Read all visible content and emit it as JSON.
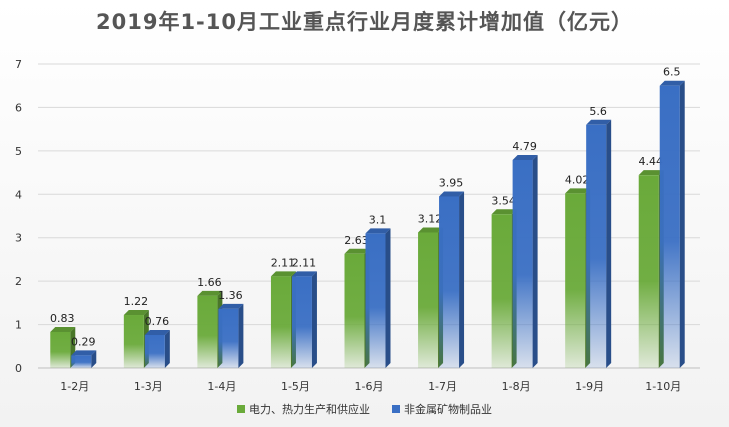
{
  "chart_data": {
    "type": "bar",
    "title": "2019年1-10月工业重点行业月度累计增加值（亿元）",
    "categories": [
      "1-2月",
      "1-3月",
      "1-4月",
      "1-5月",
      "1-6月",
      "1-7月",
      "1-8月",
      "1-9月",
      "1-10月"
    ],
    "series": [
      {
        "name": "电力、热力生产和供应业",
        "values": [
          0.83,
          1.22,
          1.66,
          2.11,
          2.63,
          3.12,
          3.54,
          4.02,
          4.44
        ],
        "color": "#6aaa3a"
      },
      {
        "name": "非金属矿物制品业",
        "values": [
          0.29,
          0.76,
          1.36,
          2.11,
          3.1,
          3.95,
          4.79,
          5.6,
          6.5
        ],
        "color": "#3a6fc4"
      }
    ],
    "ylim": [
      0,
      7
    ],
    "yticks": [
      0,
      1,
      2,
      3,
      4,
      5,
      6,
      7
    ],
    "grid": true,
    "legend": "bottom",
    "xlabel": "",
    "ylabel": ""
  }
}
